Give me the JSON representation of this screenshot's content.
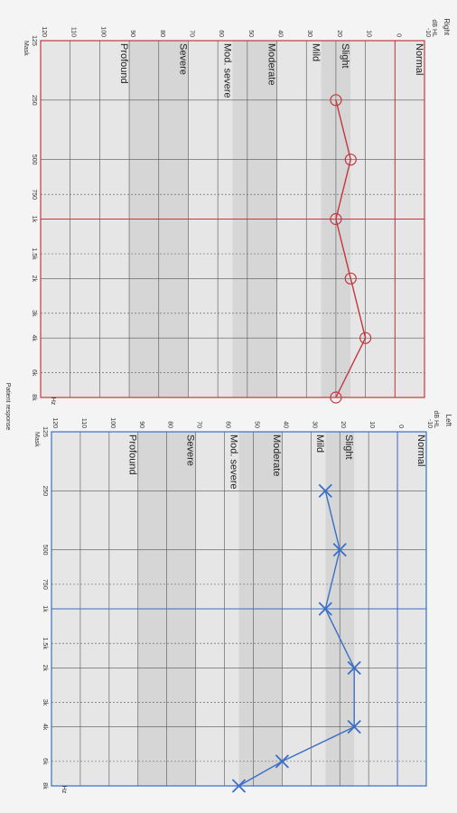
{
  "chart_data": [
    {
      "type": "line",
      "title": "Right",
      "y_axis_label": "dB HL",
      "x_axis_label": "Hz",
      "mask_label": "Mask",
      "color": "#c4373d",
      "marker": "circle",
      "xscale": "log",
      "x": [
        250,
        500,
        1000,
        2000,
        4000,
        8000
      ],
      "values": [
        20,
        15,
        20,
        15,
        10,
        20
      ],
      "xlim": [
        125,
        8000
      ],
      "xticks": [
        125,
        250,
        500,
        750,
        {
          "value": 1000,
          "label": "1k"
        },
        {
          "value": 1500,
          "label": "1.5k"
        },
        {
          "value": 2000,
          "label": "2k"
        },
        {
          "value": 3000,
          "label": "3k"
        },
        {
          "value": 4000,
          "label": "4k"
        },
        {
          "value": 6000,
          "label": "6k"
        },
        {
          "value": 8000,
          "label": "8k"
        }
      ],
      "ylim": [
        -10,
        120
      ],
      "yticks": [
        -10,
        0,
        10,
        20,
        30,
        40,
        50,
        60,
        70,
        80,
        90,
        100,
        110,
        120
      ],
      "hearing_levels": [
        {
          "label": "Normal",
          "from": -10
        },
        {
          "label": "Slight",
          "from": 15
        },
        {
          "label": "Mild",
          "from": 25
        },
        {
          "label": "Moderate",
          "from": 40
        },
        {
          "label": "Mod. severe",
          "from": 55
        },
        {
          "label": "Severe",
          "from": 70
        },
        {
          "label": "Profound",
          "from": 90
        }
      ]
    },
    {
      "type": "line",
      "title": "Left",
      "y_axis_label": "dB HL",
      "x_axis_label": "Hz",
      "mask_label": "Mask",
      "color": "#3a6fc6",
      "marker": "cross",
      "xscale": "log",
      "x": [
        250,
        500,
        1000,
        2000,
        4000,
        6000,
        8000
      ],
      "values": [
        25,
        20,
        25,
        15,
        15,
        40,
        55
      ],
      "xlim": [
        125,
        8000
      ],
      "xticks": [
        125,
        250,
        500,
        750,
        {
          "value": 1000,
          "label": "1k"
        },
        {
          "value": 1500,
          "label": "1.5k"
        },
        {
          "value": 2000,
          "label": "2k"
        },
        {
          "value": 3000,
          "label": "3k"
        },
        {
          "value": 4000,
          "label": "4k"
        },
        {
          "value": 6000,
          "label": "6k"
        },
        {
          "value": 8000,
          "label": "8k"
        }
      ],
      "ylim": [
        -10,
        120
      ],
      "yticks": [
        -10,
        0,
        10,
        20,
        30,
        40,
        50,
        60,
        70,
        80,
        90,
        100,
        110,
        120
      ],
      "hearing_levels": [
        {
          "label": "Normal",
          "from": -10
        },
        {
          "label": "Slight",
          "from": 15
        },
        {
          "label": "Mild",
          "from": 25
        },
        {
          "label": "Moderate",
          "from": 40
        },
        {
          "label": "Mod. severe",
          "from": 55
        },
        {
          "label": "Severe",
          "from": 70
        },
        {
          "label": "Profound",
          "from": 90
        }
      ]
    }
  ],
  "footer": "Patient response"
}
